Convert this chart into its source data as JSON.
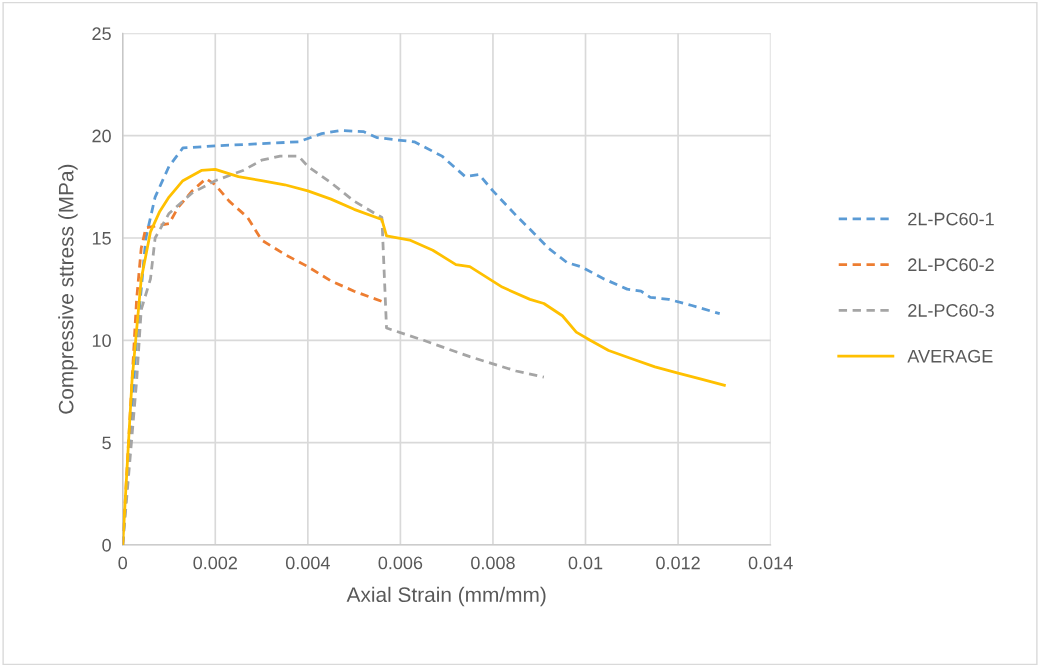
{
  "chart_data": {
    "type": "line",
    "xlabel": "Axial Strain (mm/mm)",
    "ylabel": "Compressive sttress (MPa)",
    "xlim": [
      0,
      0.014
    ],
    "xticks": [
      0,
      0.002,
      0.004,
      0.006,
      0.008,
      0.01,
      0.012,
      0.014
    ],
    "ylim": [
      0,
      25
    ],
    "yticks": [
      0,
      5,
      10,
      15,
      20,
      25
    ],
    "grid": true,
    "legend": "right",
    "marker": "none",
    "series": [
      {
        "name": "2L-PC60-1",
        "color": "#5b9bd5",
        "line_style": "dashed",
        "x": [
          0,
          0.0003,
          0.0005,
          0.0007,
          0.001,
          0.0013,
          0.002,
          0.0038,
          0.0043,
          0.0047,
          0.0052,
          0.0055,
          0.0063,
          0.0069,
          0.0074,
          0.0077,
          0.008,
          0.0085,
          0.0089,
          0.0092,
          0.0096,
          0.0099,
          0.0104,
          0.0109,
          0.0112,
          0.0114,
          0.0118,
          0.0123,
          0.0129
        ],
        "values": [
          0,
          10,
          15,
          17,
          18.5,
          19.4,
          19.5,
          19.7,
          20.1,
          20.25,
          20.2,
          19.9,
          19.7,
          19,
          18,
          18.1,
          17.3,
          16.1,
          15.2,
          14.5,
          13.8,
          13.6,
          13,
          12.5,
          12.4,
          12.1,
          12,
          11.7,
          11.3
        ]
      },
      {
        "name": "2L-PC60-2",
        "color": "#ed7d31",
        "line_style": "dashed",
        "x": [
          0,
          0.0002,
          0.0003,
          0.0004,
          0.0005,
          0.001,
          0.0012,
          0.0015,
          0.0018,
          0.002,
          0.0023,
          0.0027,
          0.003,
          0.0035,
          0.004,
          0.0045,
          0.005,
          0.0056
        ],
        "values": [
          0,
          8,
          12,
          14.5,
          15.5,
          15.7,
          16.5,
          17.3,
          17.9,
          17.6,
          16.8,
          16,
          14.9,
          14.2,
          13.6,
          12.9,
          12.4,
          11.9
        ]
      },
      {
        "name": "2L-PC60-3",
        "color": "#a5a5a5",
        "line_style": "dashed",
        "x": [
          0,
          0.0003,
          0.0004,
          0.0006,
          0.0007,
          0.001,
          0.0015,
          0.002,
          0.0026,
          0.003,
          0.0034,
          0.0038,
          0.004,
          0.0045,
          0.005,
          0.0056,
          0.0057,
          0.0065,
          0.0075,
          0.0085,
          0.0091
        ],
        "values": [
          0,
          8,
          11.5,
          13,
          15,
          16.2,
          17.2,
          17.8,
          18.3,
          18.8,
          19,
          19,
          18.5,
          17.7,
          16.8,
          16,
          10.6,
          10,
          9.2,
          8.5,
          8.2
        ]
      },
      {
        "name": "AVERAGE",
        "color": "#ffc000",
        "line_style": "solid",
        "x": [
          0,
          0.0002,
          0.0004,
          0.0006,
          0.0008,
          0.001,
          0.0013,
          0.0017,
          0.002,
          0.0025,
          0.003,
          0.0035,
          0.004,
          0.0045,
          0.005,
          0.0056,
          0.0057,
          0.0062,
          0.0067,
          0.0072,
          0.0075,
          0.0082,
          0.0088,
          0.0091,
          0.0095,
          0.0098,
          0.0101,
          0.0105,
          0.011,
          0.0115,
          0.012,
          0.0125,
          0.013
        ],
        "values": [
          0,
          8,
          13,
          15.3,
          16.3,
          17,
          17.8,
          18.3,
          18.35,
          18,
          17.8,
          17.6,
          17.3,
          16.9,
          16.4,
          15.9,
          15.1,
          14.9,
          14.4,
          13.7,
          13.6,
          12.6,
          12,
          11.8,
          11.2,
          10.4,
          10,
          9.5,
          9.1,
          8.7,
          8.4,
          8.1,
          7.8
        ]
      }
    ]
  }
}
